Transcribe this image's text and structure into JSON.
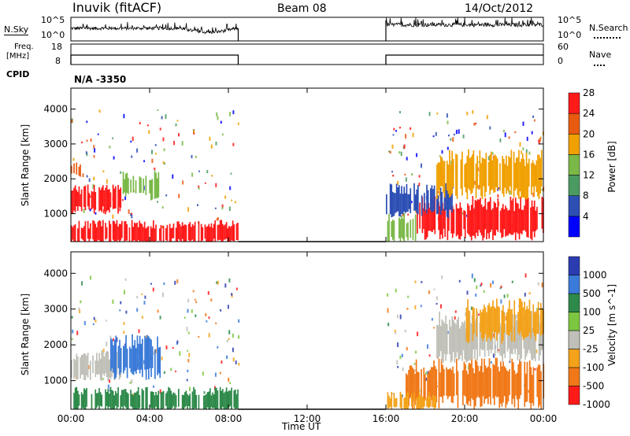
{
  "header": {
    "station": "Inuvik (fitACF)",
    "beam": "Beam 08",
    "date": "14/Oct/2012"
  },
  "panels": {
    "nsky": {
      "label": "N.Sky",
      "tick_top": "10^5",
      "tick_bottom": "10^0"
    },
    "nsearch": {
      "label": "N.Search",
      "tick_top": "10^5",
      "tick_bottom": "10^0"
    },
    "freq": {
      "label_line1": "Freq.",
      "label_line2": "[MHz]",
      "tick_top": "18",
      "tick_bottom": "8"
    },
    "nave": {
      "label": "Nave",
      "tick_top": "60",
      "tick_bottom": "0"
    },
    "cpid": {
      "label": "CPID",
      "value": "N/A -3350"
    }
  },
  "colors": {
    "power": [
      "#0000ff",
      "#2d4fb4",
      "#4a9a62",
      "#7ab848",
      "#f0a000",
      "#e85a10",
      "#ff1a1a"
    ],
    "velocity": [
      "#2a3cb0",
      "#3a7ad8",
      "#2e8a4a",
      "#7cc640",
      "#c0c0b8",
      "#f3a21a",
      "#f07818",
      "#ff1a1a"
    ]
  },
  "chart_data": [
    {
      "type": "heatmap",
      "name": "power",
      "xlabel": "",
      "ylabel": "Slant Range [km]",
      "xlim": [
        "00:00",
        "24:00"
      ],
      "ylim": [
        200,
        4600
      ],
      "x_ticks": [
        "00:00",
        "04:00",
        "08:00",
        "12:00",
        "16:00",
        "20:00",
        "00:00"
      ],
      "y_ticks": [
        "1000",
        "2000",
        "3000",
        "4000"
      ],
      "colorbar_label": "Power [dB]",
      "colorbar_ticks": [
        "4",
        "8",
        "12",
        "16",
        "20",
        "24",
        "28"
      ],
      "data_gap": [
        "08:30",
        "16:00"
      ],
      "regions": [
        {
          "t": [
            0.0,
            2.5
          ],
          "range_km": [
            1100,
            1700
          ],
          "level": "28"
        },
        {
          "t": [
            0.0,
            0.5
          ],
          "range_km": [
            2100,
            2400
          ],
          "level": "24"
        },
        {
          "t": [
            0.0,
            8.5
          ],
          "range_km": [
            200,
            700
          ],
          "level": "28"
        },
        {
          "t": [
            2.5,
            4.5
          ],
          "range_km": [
            1500,
            2100
          ],
          "level": "16"
        },
        {
          "t": [
            17.5,
            24.0
          ],
          "range_km": [
            400,
            1300
          ],
          "level": "28"
        },
        {
          "t": [
            16.0,
            19.5
          ],
          "range_km": [
            1000,
            1700
          ],
          "level": "8"
        },
        {
          "t": [
            18.5,
            24.0
          ],
          "range_km": [
            1600,
            2600
          ],
          "level": "20"
        },
        {
          "t": [
            16.0,
            17.5
          ],
          "range_km": [
            200,
            900
          ],
          "level": "16"
        }
      ]
    },
    {
      "type": "heatmap",
      "name": "velocity",
      "xlabel": "Time UT",
      "ylabel": "Slant Range [km]",
      "xlim": [
        "00:00",
        "24:00"
      ],
      "ylim": [
        200,
        4600
      ],
      "x_ticks": [
        "00:00",
        "04:00",
        "08:00",
        "12:00",
        "16:00",
        "20:00",
        "00:00"
      ],
      "y_ticks": [
        "1000",
        "2000",
        "3000",
        "4000"
      ],
      "colorbar_label": "Velocity [m s^-1]",
      "colorbar_ticks": [
        "1000",
        "500",
        "100",
        "25",
        "-25",
        "-100",
        "-500",
        "-1000"
      ],
      "data_gap": [
        "08:30",
        "16:00"
      ],
      "regions": [
        {
          "t": [
            0.0,
            2.5
          ],
          "range_km": [
            1100,
            1700
          ],
          "level": "-25"
        },
        {
          "t": [
            2.0,
            4.5
          ],
          "range_km": [
            1200,
            2100
          ],
          "level": "500"
        },
        {
          "t": [
            0.0,
            8.5
          ],
          "range_km": [
            200,
            700
          ],
          "level": "100"
        },
        {
          "t": [
            17.0,
            24.0
          ],
          "range_km": [
            400,
            1400
          ],
          "level": "-500"
        },
        {
          "t": [
            16.0,
            18.5
          ],
          "range_km": [
            200,
            600
          ],
          "level": "-100"
        },
        {
          "t": [
            18.5,
            24.0
          ],
          "range_km": [
            1700,
            2700
          ],
          "level": "-25"
        },
        {
          "t": [
            20.0,
            24.0
          ],
          "range_km": [
            2200,
            3100
          ],
          "level": "-100"
        }
      ]
    }
  ]
}
